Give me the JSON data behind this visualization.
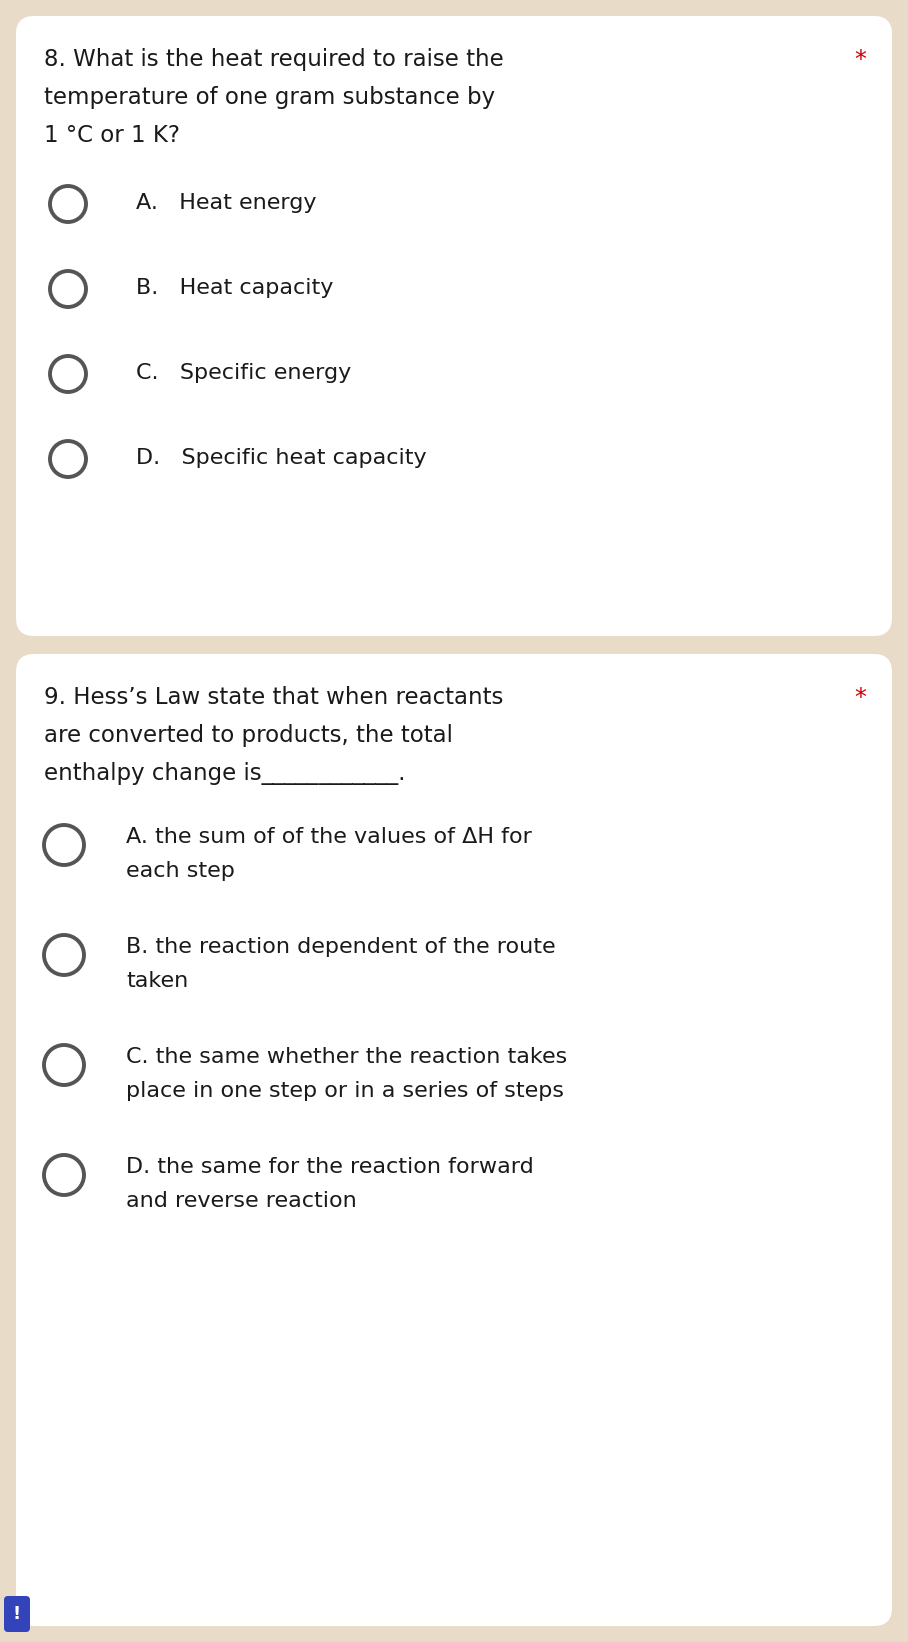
{
  "bg_color": "#e8dcc8",
  "card_color": "#ffffff",
  "text_color": "#1a1a1a",
  "star_color": "#cc0000",
  "circle_edge_color": "#555555",
  "font_size_q": 16.5,
  "font_size_opt": 16.0,
  "q1": {
    "line1": "8. What is the heat required to raise the",
    "line2": "temperature of one gram substance by",
    "line3": "1 °C or 1 K?",
    "options": [
      "A.   Heat energy",
      "B.   Heat capacity",
      "C.   Specific energy",
      "D.   Specific heat capacity"
    ]
  },
  "q2": {
    "line1": "9. Hess’s Law state that when reactants",
    "line2": "are converted to products, the total",
    "line3": "enthalpy change is____________.",
    "options": [
      [
        "A. the sum of of the values of ΔH for",
        "each step"
      ],
      [
        "B. the reaction dependent of the route",
        "taken"
      ],
      [
        "C. the same whether the reaction takes",
        "place in one step or in a series of steps"
      ],
      [
        "D. the same for the reaction forward",
        "and reverse reaction"
      ]
    ]
  },
  "excl_color": "#ffffff",
  "excl_bg": "#3344bb"
}
